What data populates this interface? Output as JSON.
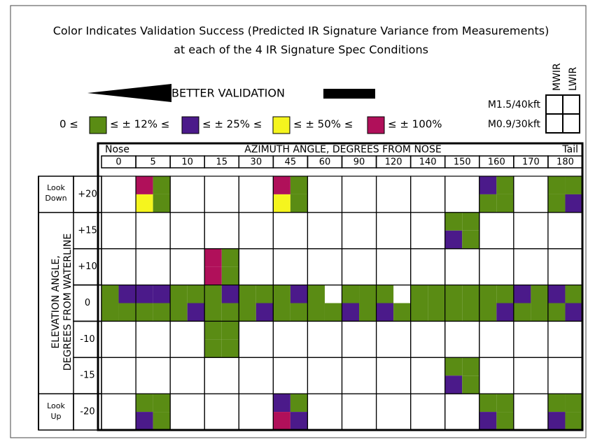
{
  "title": [
    "Color Indicates Validation Success (Predicted IR Signature Variance from Measurements)",
    "at each of the 4 IR Signature Spec Conditions"
  ],
  "arrow_label": "BETTER VALIDATION",
  "legend": {
    "start": "0 ≤",
    "items": [
      {
        "color": "#5a8c14",
        "label": "≤ ± 12% ≤"
      },
      {
        "color": "#4b1a8a",
        "label": "≤ ± 25% ≤"
      },
      {
        "color": "#f5f51e",
        "label": "≤ ± 50% ≤"
      },
      {
        "color": "#b0105a",
        "label": "≤ ± 100%"
      }
    ]
  },
  "key": {
    "columns": [
      "MWIR",
      "LWIR"
    ],
    "rows": [
      "M1.5/40kft",
      "M0.9/30kft"
    ]
  },
  "table": {
    "nose": "Nose",
    "azimuth_title": "AZIMUTH ANGLE, DEGREES FROM NOSE",
    "tail": "Tail",
    "columns": [
      "0",
      "5",
      "10",
      "15",
      "30",
      "45",
      "60",
      "90",
      "120",
      "140",
      "150",
      "160",
      "170",
      "180"
    ],
    "elevation_title": [
      "ELEVATION ANGLE,",
      "DEGREES FROM WATERLINE"
    ],
    "look_down": [
      "Look",
      "Down"
    ],
    "look_up": [
      "Look",
      "Up"
    ],
    "rows": [
      {
        "label": "+20",
        "cells": [
          null,
          [
            3,
            0,
            2,
            0
          ],
          null,
          null,
          null,
          [
            3,
            0,
            2,
            0
          ],
          null,
          null,
          null,
          null,
          null,
          [
            1,
            0,
            0,
            0
          ],
          null,
          [
            0,
            0,
            0,
            1
          ]
        ]
      },
      {
        "label": "+15",
        "cells": [
          null,
          null,
          null,
          null,
          null,
          null,
          null,
          null,
          null,
          null,
          [
            0,
            0,
            1,
            0
          ],
          null,
          null,
          null
        ]
      },
      {
        "label": "+10",
        "cells": [
          null,
          null,
          null,
          [
            3,
            0,
            3,
            0
          ],
          null,
          null,
          null,
          null,
          null,
          null,
          null,
          null,
          null,
          null
        ]
      },
      {
        "label": "0",
        "cells": [
          [
            0,
            1,
            0,
            0
          ],
          [
            1,
            1,
            0,
            0
          ],
          [
            0,
            0,
            0,
            1
          ],
          [
            0,
            1,
            0,
            0
          ],
          [
            0,
            0,
            0,
            1
          ],
          [
            0,
            1,
            0,
            0
          ],
          [
            0,
            null,
            0,
            0
          ],
          [
            0,
            0,
            1,
            0
          ],
          [
            0,
            null,
            1,
            0
          ],
          [
            0,
            0,
            0,
            0
          ],
          [
            0,
            0,
            0,
            0
          ],
          [
            0,
            0,
            0,
            1
          ],
          [
            1,
            0,
            0,
            0
          ],
          [
            1,
            0,
            0,
            1
          ]
        ]
      },
      {
        "label": "-10",
        "cells": [
          null,
          null,
          null,
          [
            0,
            0,
            0,
            0
          ],
          null,
          null,
          null,
          null,
          null,
          null,
          null,
          null,
          null,
          null
        ]
      },
      {
        "label": "-15",
        "cells": [
          null,
          null,
          null,
          null,
          null,
          null,
          null,
          null,
          null,
          null,
          [
            0,
            0,
            1,
            0
          ],
          null,
          null,
          null
        ]
      },
      {
        "label": "-20",
        "cells": [
          null,
          [
            0,
            0,
            1,
            0
          ],
          null,
          null,
          null,
          [
            1,
            0,
            3,
            1
          ],
          null,
          null,
          null,
          null,
          null,
          [
            0,
            0,
            1,
            0
          ],
          null,
          [
            0,
            0,
            1,
            0
          ]
        ]
      }
    ]
  }
}
